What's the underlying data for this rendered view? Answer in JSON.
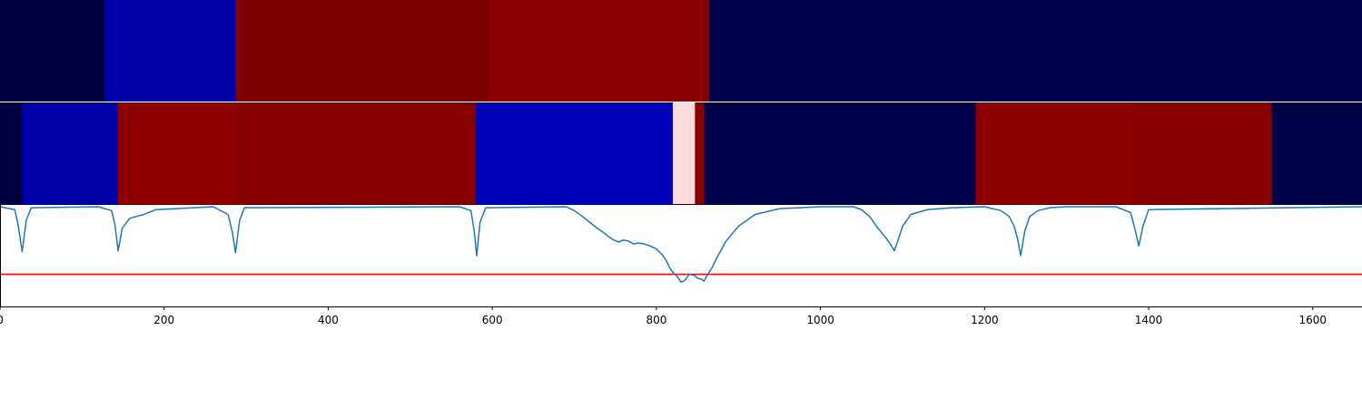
{
  "chart_data": [
    {
      "type": "heatmap",
      "segments": [
        {
          "start": 0,
          "end": 127,
          "color": "#00003f"
        },
        {
          "start": 127,
          "end": 287,
          "color": "#0000aa"
        },
        {
          "start": 287,
          "end": 595,
          "color": "#7d0000"
        },
        {
          "start": 595,
          "end": 864,
          "color": "#8a0000"
        },
        {
          "start": 864,
          "end": 1660,
          "color": "#00004d"
        }
      ]
    },
    {
      "type": "heatmap",
      "segments": [
        {
          "start": 0,
          "end": 27,
          "color": "#000040"
        },
        {
          "start": 27,
          "end": 144,
          "color": "#0000ab"
        },
        {
          "start": 144,
          "end": 287,
          "color": "#8f0000"
        },
        {
          "start": 287,
          "end": 580,
          "color": "#870000"
        },
        {
          "start": 580,
          "end": 820,
          "color": "#0000b8"
        },
        {
          "start": 820,
          "end": 847,
          "color": "#ffdada"
        },
        {
          "start": 847,
          "end": 858,
          "color": "#880000"
        },
        {
          "start": 858,
          "end": 1189,
          "color": "#00004b"
        },
        {
          "start": 1189,
          "end": 1378,
          "color": "#8d0000"
        },
        {
          "start": 1378,
          "end": 1550,
          "color": "#880000"
        },
        {
          "start": 1550,
          "end": 1660,
          "color": "#000048"
        }
      ]
    },
    {
      "type": "line",
      "xlim": [
        0,
        1660
      ],
      "ylim": [
        0,
        1
      ],
      "x_ticks": [
        0,
        200,
        400,
        600,
        800,
        1000,
        1200,
        1400,
        1600
      ],
      "threshold": 0.31,
      "line_color": "#1f77b4",
      "threshold_color": "#ff0000",
      "x": [
        0,
        18,
        22,
        27,
        32,
        38,
        120,
        136,
        140,
        144,
        149,
        158,
        166,
        175,
        190,
        260,
        278,
        283,
        287,
        292,
        298,
        560,
        574,
        578,
        581,
        585,
        592,
        690,
        695,
        700,
        705,
        710,
        716,
        722,
        728,
        735,
        741,
        748,
        754,
        760,
        766,
        772,
        778,
        785,
        792,
        800,
        808,
        812,
        816,
        820,
        825,
        830,
        835,
        840,
        846,
        850,
        855,
        858,
        862,
        868,
        875,
        885,
        900,
        920,
        950,
        1000,
        1040,
        1050,
        1060,
        1070,
        1080,
        1085,
        1090,
        1095,
        1100,
        1110,
        1130,
        1160,
        1200,
        1220,
        1230,
        1236,
        1240,
        1244,
        1249,
        1255,
        1265,
        1280,
        1300,
        1360,
        1378,
        1383,
        1388,
        1393,
        1400,
        1660
      ],
      "y": [
        1.0,
        0.97,
        0.82,
        0.54,
        0.86,
        0.99,
        1.0,
        0.96,
        0.82,
        0.55,
        0.78,
        0.88,
        0.9,
        0.92,
        0.97,
        1.0,
        0.92,
        0.75,
        0.53,
        0.86,
        0.99,
        1.0,
        0.96,
        0.75,
        0.5,
        0.84,
        0.99,
        1.0,
        0.98,
        0.96,
        0.93,
        0.9,
        0.86,
        0.82,
        0.78,
        0.74,
        0.7,
        0.66,
        0.64,
        0.66,
        0.65,
        0.62,
        0.63,
        0.62,
        0.6,
        0.57,
        0.5,
        0.45,
        0.38,
        0.33,
        0.29,
        0.23,
        0.25,
        0.31,
        0.3,
        0.27,
        0.26,
        0.24,
        0.3,
        0.38,
        0.5,
        0.65,
        0.8,
        0.92,
        0.98,
        1.0,
        1.0,
        0.97,
        0.9,
        0.78,
        0.68,
        0.62,
        0.55,
        0.67,
        0.8,
        0.92,
        0.97,
        0.99,
        1.0,
        0.96,
        0.9,
        0.8,
        0.68,
        0.5,
        0.75,
        0.9,
        0.96,
        0.99,
        1.0,
        1.0,
        0.94,
        0.78,
        0.6,
        0.8,
        0.97,
        1.0
      ]
    }
  ]
}
